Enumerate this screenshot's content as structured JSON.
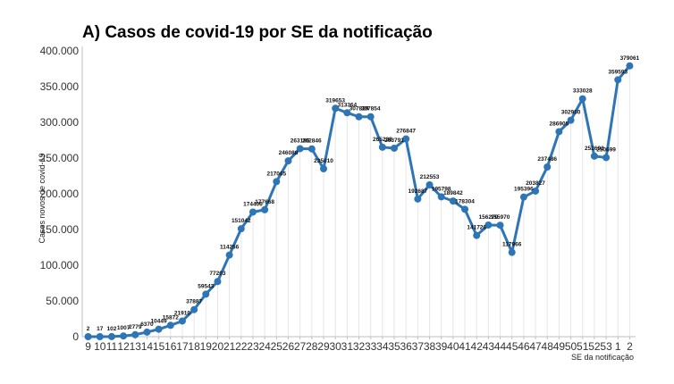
{
  "chart_data": {
    "type": "line",
    "title": "A) Casos de covid-19 por SE da notificação",
    "xlabel": "SE da notificação",
    "ylabel": "Casos novos de covid-19",
    "ylim": [
      0,
      400000
    ],
    "yticks": [
      "0",
      "50.000",
      "100.000",
      "150.000",
      "200.000",
      "250.000",
      "300.000",
      "350.000",
      "400.000"
    ],
    "ytick_values": [
      0,
      50000,
      100000,
      150000,
      200000,
      250000,
      300000,
      350000,
      400000
    ],
    "categories": [
      "9",
      "10",
      "11",
      "12",
      "13",
      "14",
      "15",
      "16",
      "17",
      "18",
      "19",
      "20",
      "21",
      "22",
      "23",
      "24",
      "25",
      "26",
      "27",
      "28",
      "29",
      "30",
      "31",
      "32",
      "33",
      "34",
      "35",
      "36",
      "37",
      "38",
      "39",
      "40",
      "41",
      "42",
      "43",
      "44",
      "45",
      "46",
      "47",
      "48",
      "49",
      "50",
      "51",
      "52",
      "53",
      "1",
      "2"
    ],
    "values": [
      2,
      17,
      102,
      1007,
      2779,
      6370,
      10449,
      15872,
      21910,
      37887,
      59543,
      77203,
      114256,
      151042,
      174406,
      177668,
      217065,
      246088,
      263185,
      262846,
      235010,
      319653,
      313364,
      307829,
      307854,
      265228,
      263791,
      276847,
      192687,
      212553,
      195798,
      189842,
      178304,
      141726,
      156270,
      155970,
      117966,
      195396,
      203827,
      237486,
      286905,
      302950,
      333028,
      252692,
      250699,
      359593,
      379061
    ],
    "data_labels": [
      "2",
      "17",
      "102",
      "1007",
      "2779",
      "6370",
      "10449",
      "15872",
      "21910",
      "37887",
      "59543",
      "77203",
      "114256",
      "151042",
      "174406",
      "177668",
      "217065",
      "246088",
      "263185",
      "262846",
      "235010",
      "319653",
      "313364",
      "307829",
      "307854",
      "265228",
      "263791",
      "276847",
      "192687",
      "212553",
      "195798",
      "189842",
      "178304",
      "141726",
      "156270",
      "155970",
      "117966",
      "195396",
      "203827",
      "237486",
      "286905",
      "302950",
      "333028",
      "252692",
      "250699",
      "359593",
      "379061"
    ],
    "colors": {
      "line": "#2e75b6",
      "marker": "#2e75b6",
      "drop": "#e6e6e6",
      "axis": "#bfbfbf"
    },
    "grid": false,
    "legend": "none"
  }
}
